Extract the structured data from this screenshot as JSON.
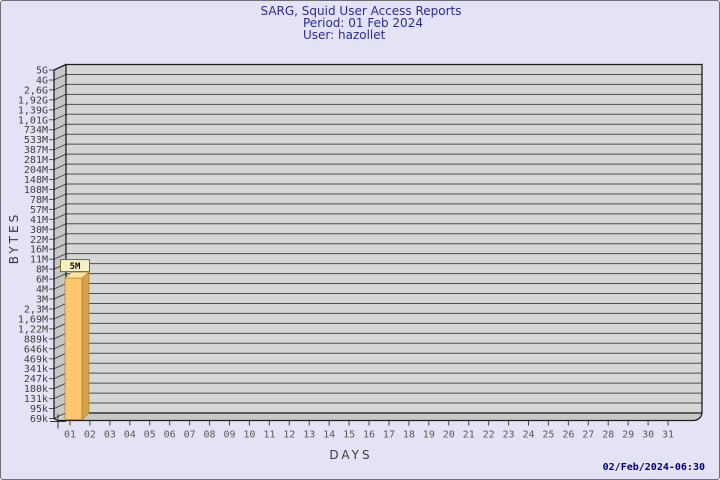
{
  "header": {
    "title": "SARG, Squid User Access Reports",
    "period": "Period: 01 Feb 2024",
    "user": "User: hazollet"
  },
  "axes": {
    "x_label": "DAYS",
    "y_label": "BYTES"
  },
  "footer": {
    "generated": "02/Feb/2024-06:30"
  },
  "colors": {
    "page_bg": "#E3E3F5",
    "title_navy": "#2B2B9B",
    "timestamp_navy": "#00007E",
    "plot_bg": "#D6D6D6",
    "wall": "#C7C7C7",
    "grid": "#4E4E4E",
    "frame": "#1F1F1F",
    "tick_text": "#3F3F3F",
    "xtick_text": "#5A5A5A",
    "bar_front": "#FDC76F",
    "bar_side": "#D8A14B",
    "bar_top": "#FFE2A2",
    "bar_edge": "#A07828",
    "value_box_bg": "#F6F0C4",
    "value_box_border": "#74701F"
  },
  "chart_data": {
    "type": "bar",
    "title": "SARG, Squid User Access Reports",
    "subtitle": [
      "Period: 01 Feb 2024",
      "User: hazollet"
    ],
    "xlabel": "DAYS",
    "ylabel": "BYTES",
    "y_scale": "logarithmic",
    "grid": "horizontal",
    "footer_timestamp": "02/Feb/2024-06:30",
    "x_tick_labels": [
      "01",
      "02",
      "03",
      "04",
      "05",
      "06",
      "07",
      "08",
      "09",
      "10",
      "11",
      "12",
      "13",
      "14",
      "15",
      "16",
      "17",
      "18",
      "19",
      "20",
      "21",
      "22",
      "23",
      "24",
      "25",
      "26",
      "27",
      "28",
      "29",
      "30",
      "31"
    ],
    "y_tick_labels": [
      "5G",
      "4G",
      "2,6G",
      "1,92G",
      "1,39G",
      "1,01G",
      "734M",
      "533M",
      "387M",
      "281M",
      "204M",
      "148M",
      "108M",
      "78M",
      "57M",
      "41M",
      "30M",
      "22M",
      "16M",
      "11M",
      "8M",
      "6M",
      "4M",
      "3M",
      "2,3M",
      "1,69M",
      "1,22M",
      "889k",
      "646k",
      "469k",
      "341k",
      "247k",
      "180k",
      "131k",
      "95k",
      "69k"
    ],
    "bars": [
      {
        "x": "01",
        "value": 5000000,
        "value_label": "5M"
      }
    ]
  }
}
